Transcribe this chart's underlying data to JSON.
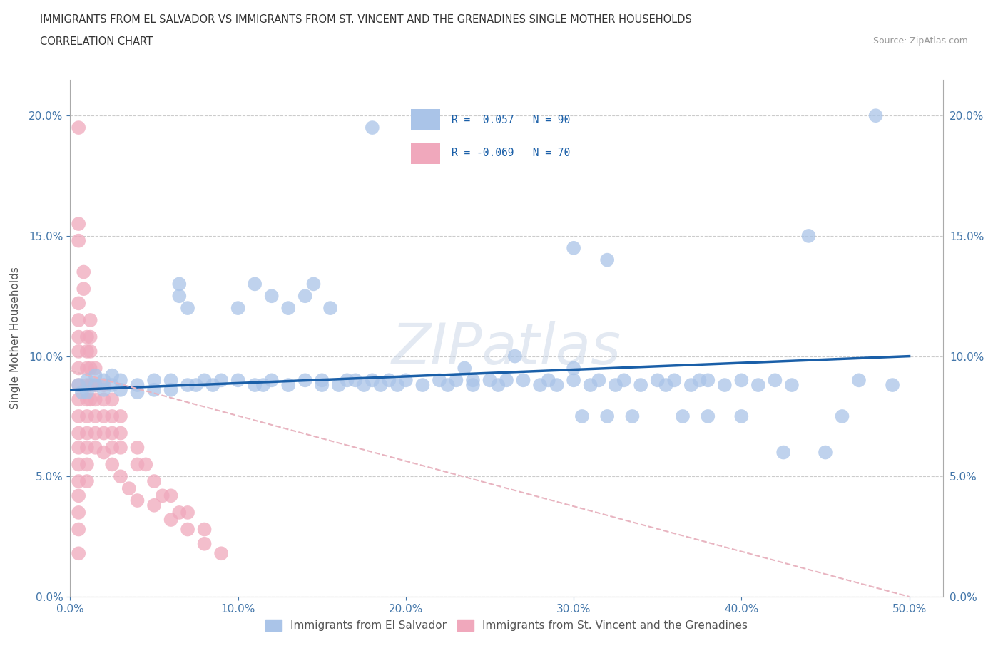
{
  "title_line1": "IMMIGRANTS FROM EL SALVADOR VS IMMIGRANTS FROM ST. VINCENT AND THE GRENADINES SINGLE MOTHER HOUSEHOLDS",
  "title_line2": "CORRELATION CHART",
  "source_text": "Source: ZipAtlas.com",
  "ylabel": "Single Mother Households",
  "watermark": "ZIPatlas",
  "xlim": [
    0.0,
    0.52
  ],
  "ylim": [
    0.0,
    0.215
  ],
  "xticks": [
    0.0,
    0.1,
    0.2,
    0.3,
    0.4,
    0.5
  ],
  "yticks": [
    0.0,
    0.05,
    0.1,
    0.15,
    0.2
  ],
  "blue_color": "#aac4e8",
  "pink_color": "#f0a8bc",
  "trend_blue_color": "#1a5fa8",
  "trend_pink_color": "#e8b4c0",
  "blue_trend_x": [
    0.0,
    0.5
  ],
  "blue_trend_y": [
    0.086,
    0.1
  ],
  "pink_trend_x": [
    0.0,
    0.5
  ],
  "pink_trend_y": [
    0.094,
    0.0
  ],
  "blue_scatter": [
    [
      0.005,
      0.088
    ],
    [
      0.007,
      0.085
    ],
    [
      0.01,
      0.09
    ],
    [
      0.01,
      0.085
    ],
    [
      0.015,
      0.092
    ],
    [
      0.015,
      0.088
    ],
    [
      0.02,
      0.09
    ],
    [
      0.02,
      0.086
    ],
    [
      0.025,
      0.092
    ],
    [
      0.025,
      0.088
    ],
    [
      0.03,
      0.09
    ],
    [
      0.03,
      0.086
    ],
    [
      0.04,
      0.088
    ],
    [
      0.04,
      0.085
    ],
    [
      0.05,
      0.09
    ],
    [
      0.05,
      0.086
    ],
    [
      0.06,
      0.09
    ],
    [
      0.06,
      0.086
    ],
    [
      0.065,
      0.13
    ],
    [
      0.065,
      0.125
    ],
    [
      0.07,
      0.12
    ],
    [
      0.07,
      0.088
    ],
    [
      0.075,
      0.088
    ],
    [
      0.08,
      0.09
    ],
    [
      0.085,
      0.088
    ],
    [
      0.09,
      0.09
    ],
    [
      0.1,
      0.09
    ],
    [
      0.1,
      0.12
    ],
    [
      0.11,
      0.13
    ],
    [
      0.11,
      0.088
    ],
    [
      0.115,
      0.088
    ],
    [
      0.12,
      0.09
    ],
    [
      0.12,
      0.125
    ],
    [
      0.13,
      0.12
    ],
    [
      0.13,
      0.088
    ],
    [
      0.14,
      0.125
    ],
    [
      0.14,
      0.09
    ],
    [
      0.145,
      0.13
    ],
    [
      0.15,
      0.088
    ],
    [
      0.15,
      0.09
    ],
    [
      0.155,
      0.12
    ],
    [
      0.16,
      0.088
    ],
    [
      0.165,
      0.09
    ],
    [
      0.17,
      0.09
    ],
    [
      0.175,
      0.088
    ],
    [
      0.18,
      0.09
    ],
    [
      0.185,
      0.088
    ],
    [
      0.19,
      0.09
    ],
    [
      0.195,
      0.088
    ],
    [
      0.2,
      0.09
    ],
    [
      0.21,
      0.088
    ],
    [
      0.22,
      0.09
    ],
    [
      0.225,
      0.088
    ],
    [
      0.23,
      0.09
    ],
    [
      0.235,
      0.095
    ],
    [
      0.24,
      0.09
    ],
    [
      0.24,
      0.088
    ],
    [
      0.25,
      0.09
    ],
    [
      0.255,
      0.088
    ],
    [
      0.26,
      0.09
    ],
    [
      0.265,
      0.1
    ],
    [
      0.27,
      0.09
    ],
    [
      0.28,
      0.088
    ],
    [
      0.285,
      0.09
    ],
    [
      0.29,
      0.088
    ],
    [
      0.3,
      0.095
    ],
    [
      0.3,
      0.09
    ],
    [
      0.305,
      0.075
    ],
    [
      0.31,
      0.088
    ],
    [
      0.315,
      0.09
    ],
    [
      0.32,
      0.075
    ],
    [
      0.325,
      0.088
    ],
    [
      0.33,
      0.09
    ],
    [
      0.335,
      0.075
    ],
    [
      0.34,
      0.088
    ],
    [
      0.35,
      0.09
    ],
    [
      0.355,
      0.088
    ],
    [
      0.36,
      0.09
    ],
    [
      0.365,
      0.075
    ],
    [
      0.37,
      0.088
    ],
    [
      0.375,
      0.09
    ],
    [
      0.38,
      0.075
    ],
    [
      0.38,
      0.09
    ],
    [
      0.39,
      0.088
    ],
    [
      0.4,
      0.09
    ],
    [
      0.4,
      0.075
    ],
    [
      0.41,
      0.088
    ],
    [
      0.42,
      0.09
    ],
    [
      0.425,
      0.06
    ],
    [
      0.43,
      0.088
    ],
    [
      0.44,
      0.15
    ],
    [
      0.45,
      0.06
    ],
    [
      0.46,
      0.075
    ],
    [
      0.47,
      0.09
    ],
    [
      0.48,
      0.2
    ],
    [
      0.49,
      0.088
    ],
    [
      0.3,
      0.145
    ],
    [
      0.32,
      0.14
    ],
    [
      0.18,
      0.195
    ]
  ],
  "pink_scatter": [
    [
      0.005,
      0.195
    ],
    [
      0.005,
      0.155
    ],
    [
      0.005,
      0.148
    ],
    [
      0.005,
      0.122
    ],
    [
      0.005,
      0.115
    ],
    [
      0.005,
      0.108
    ],
    [
      0.005,
      0.102
    ],
    [
      0.005,
      0.095
    ],
    [
      0.005,
      0.088
    ],
    [
      0.005,
      0.082
    ],
    [
      0.005,
      0.075
    ],
    [
      0.005,
      0.068
    ],
    [
      0.005,
      0.062
    ],
    [
      0.005,
      0.055
    ],
    [
      0.005,
      0.048
    ],
    [
      0.005,
      0.042
    ],
    [
      0.005,
      0.035
    ],
    [
      0.005,
      0.028
    ],
    [
      0.005,
      0.018
    ],
    [
      0.008,
      0.135
    ],
    [
      0.008,
      0.128
    ],
    [
      0.01,
      0.108
    ],
    [
      0.01,
      0.102
    ],
    [
      0.01,
      0.095
    ],
    [
      0.01,
      0.088
    ],
    [
      0.01,
      0.082
    ],
    [
      0.01,
      0.075
    ],
    [
      0.01,
      0.068
    ],
    [
      0.01,
      0.062
    ],
    [
      0.01,
      0.055
    ],
    [
      0.01,
      0.048
    ],
    [
      0.012,
      0.115
    ],
    [
      0.012,
      0.108
    ],
    [
      0.012,
      0.102
    ],
    [
      0.012,
      0.095
    ],
    [
      0.012,
      0.088
    ],
    [
      0.012,
      0.082
    ],
    [
      0.015,
      0.095
    ],
    [
      0.015,
      0.088
    ],
    [
      0.015,
      0.082
    ],
    [
      0.015,
      0.075
    ],
    [
      0.015,
      0.068
    ],
    [
      0.015,
      0.062
    ],
    [
      0.02,
      0.088
    ],
    [
      0.02,
      0.082
    ],
    [
      0.02,
      0.075
    ],
    [
      0.02,
      0.068
    ],
    [
      0.025,
      0.082
    ],
    [
      0.025,
      0.075
    ],
    [
      0.025,
      0.068
    ],
    [
      0.025,
      0.062
    ],
    [
      0.03,
      0.075
    ],
    [
      0.03,
      0.068
    ],
    [
      0.03,
      0.062
    ],
    [
      0.04,
      0.062
    ],
    [
      0.04,
      0.055
    ],
    [
      0.045,
      0.055
    ],
    [
      0.05,
      0.048
    ],
    [
      0.055,
      0.042
    ],
    [
      0.06,
      0.042
    ],
    [
      0.065,
      0.035
    ],
    [
      0.07,
      0.035
    ],
    [
      0.08,
      0.028
    ],
    [
      0.02,
      0.06
    ],
    [
      0.025,
      0.055
    ],
    [
      0.03,
      0.05
    ],
    [
      0.035,
      0.045
    ],
    [
      0.04,
      0.04
    ],
    [
      0.05,
      0.038
    ],
    [
      0.06,
      0.032
    ],
    [
      0.07,
      0.028
    ],
    [
      0.08,
      0.022
    ],
    [
      0.09,
      0.018
    ]
  ]
}
